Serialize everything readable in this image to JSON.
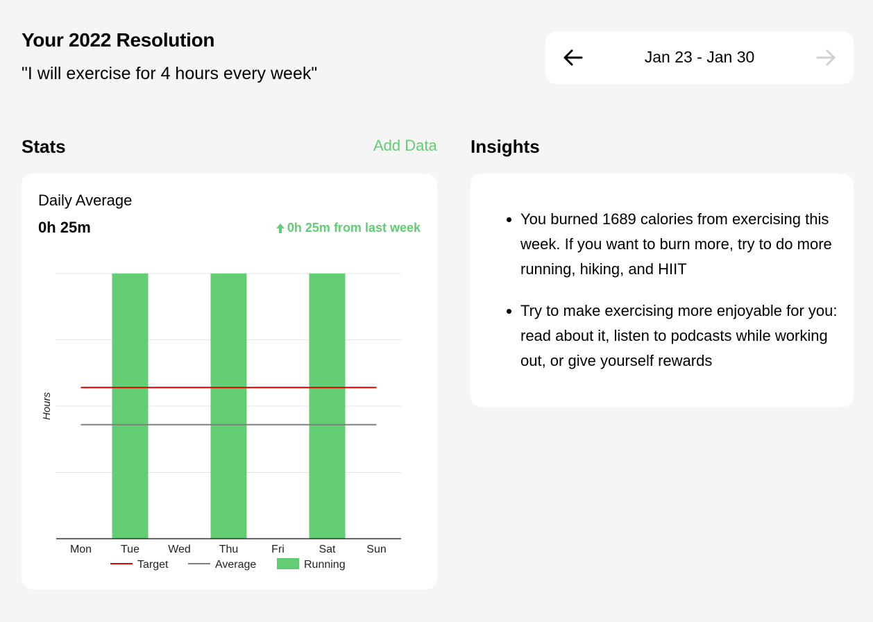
{
  "header": {
    "title": "Your 2022 Resolution",
    "quote": "\"I will exercise for 4 hours every week\""
  },
  "date_nav": {
    "range": "Jan 23 - Jan 30",
    "prev_icon": "arrow-left-icon",
    "next_icon": "arrow-right-icon",
    "next_disabled": true
  },
  "stats": {
    "title": "Stats",
    "add_data": "Add Data",
    "daily_average_label": "Daily Average",
    "daily_average_value": "0h 25m",
    "delta_text": "0h 25m from last week",
    "delta_icon": "arrow-up-icon"
  },
  "insights": {
    "title": "Insights",
    "items": [
      "You burned 1689 calories from exercising this week. If you want to burn more, try to do more running, hiking, and HIIT",
      "Try to make exercising more enjoyable for you: read about it, listen to podcasts while working out, or give yourself rewards"
    ]
  },
  "colors": {
    "accent": "#62cd72",
    "target": "#e00000",
    "average": "#808080"
  },
  "chart_data": {
    "type": "bar",
    "categories": [
      "Mon",
      "Tue",
      "Wed",
      "Thu",
      "Fri",
      "Sat",
      "Sun"
    ],
    "series": [
      {
        "name": "Running",
        "values": [
          0,
          1,
          0,
          1,
          0,
          1,
          0
        ],
        "color": "#62cd72"
      }
    ],
    "reference_lines": [
      {
        "name": "Target",
        "value": 0.57,
        "color": "#e00000"
      },
      {
        "name": "Average",
        "value": 0.43,
        "color": "#808080"
      }
    ],
    "ylabel": "Hours",
    "ylim": [
      0,
      1
    ],
    "grid": true,
    "legend": [
      "Target",
      "Average",
      "Running"
    ],
    "legend_position": "bottom"
  }
}
